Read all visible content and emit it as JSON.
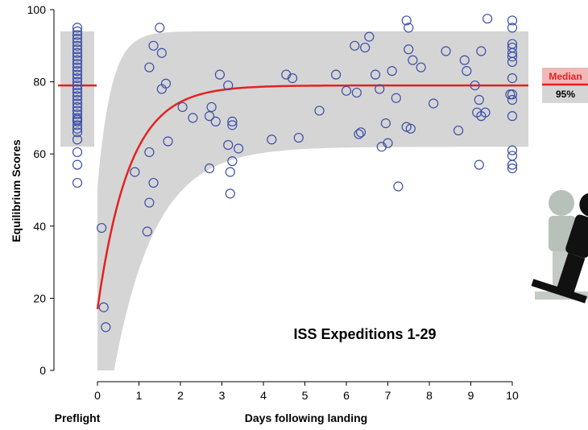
{
  "chart_data": {
    "type": "scatter",
    "title": "",
    "annotation": "ISS Expeditions 1-29",
    "xlabel": "Days following landing",
    "ylabel": "Equilibrium Scores",
    "preflight_label": "Preflight",
    "xlim": [
      0,
      10
    ],
    "ylim": [
      0,
      100
    ],
    "x_ticks": [
      0,
      1,
      2,
      3,
      4,
      5,
      6,
      7,
      8,
      9,
      10
    ],
    "y_ticks": [
      0,
      20,
      40,
      60,
      80,
      100
    ],
    "grid": false,
    "legend": {
      "position": "right",
      "median_label": "Median",
      "band_label": "95%"
    },
    "colors": {
      "points": "#3b4fa8",
      "median": "#e52222",
      "band": "#d5d5d5",
      "legend_median_bg": "#f2b8b8",
      "legend_band_bg": "#d5d5d5"
    },
    "preflight": {
      "median": 79,
      "band": [
        62,
        94
      ],
      "values": [
        95,
        94,
        93,
        92,
        91,
        90,
        89,
        88,
        87,
        86,
        85,
        84,
        83,
        82,
        81,
        80,
        79,
        78,
        77,
        76,
        75,
        74,
        73,
        72,
        71,
        70,
        69.5,
        69,
        68,
        67,
        66,
        64,
        60.5,
        57,
        52
      ]
    },
    "recovery": {
      "median_curve": {
        "start": 17,
        "asymptote": 79,
        "rate": 1.3
      },
      "band_upper": {
        "start": 51,
        "asymptote": 94,
        "rate": 3.0
      },
      "band_lower": {
        "start": 0,
        "flat_until": 0.4,
        "asymptote": 62,
        "rate": 1.0
      }
    },
    "points": [
      [
        0.1,
        39.5
      ],
      [
        0.15,
        17.5
      ],
      [
        0.2,
        12
      ],
      [
        0.9,
        55
      ],
      [
        1.2,
        38.5
      ],
      [
        1.25,
        46.5
      ],
      [
        1.25,
        60.5
      ],
      [
        1.25,
        84
      ],
      [
        1.35,
        90
      ],
      [
        1.35,
        52
      ],
      [
        1.5,
        95
      ],
      [
        1.55,
        88
      ],
      [
        1.55,
        78
      ],
      [
        1.65,
        79.5
      ],
      [
        1.7,
        63.5
      ],
      [
        2.05,
        73
      ],
      [
        2.3,
        70
      ],
      [
        2.7,
        56
      ],
      [
        2.7,
        70.5
      ],
      [
        2.75,
        73
      ],
      [
        2.85,
        69
      ],
      [
        2.95,
        82
      ],
      [
        3.15,
        79
      ],
      [
        3.15,
        62.5
      ],
      [
        3.2,
        55
      ],
      [
        3.2,
        49
      ],
      [
        3.25,
        68
      ],
      [
        3.25,
        69
      ],
      [
        3.25,
        58
      ],
      [
        3.4,
        61.5
      ],
      [
        4.2,
        64
      ],
      [
        4.55,
        82
      ],
      [
        4.7,
        81
      ],
      [
        4.85,
        64.5
      ],
      [
        5.35,
        72
      ],
      [
        5.75,
        82
      ],
      [
        6.0,
        77.5
      ],
      [
        6.2,
        90
      ],
      [
        6.25,
        77
      ],
      [
        6.3,
        65.5
      ],
      [
        6.35,
        66
      ],
      [
        6.45,
        89.5
      ],
      [
        6.55,
        92.5
      ],
      [
        6.7,
        82
      ],
      [
        6.8,
        78
      ],
      [
        6.85,
        62
      ],
      [
        6.95,
        68.5
      ],
      [
        7.0,
        63
      ],
      [
        7.1,
        83
      ],
      [
        7.2,
        75.5
      ],
      [
        7.25,
        51
      ],
      [
        7.45,
        97
      ],
      [
        7.45,
        67.5
      ],
      [
        7.5,
        95
      ],
      [
        7.5,
        89
      ],
      [
        7.55,
        67
      ],
      [
        7.6,
        86
      ],
      [
        7.8,
        84
      ],
      [
        8.1,
        74
      ],
      [
        8.4,
        88.5
      ],
      [
        8.7,
        66.5
      ],
      [
        8.85,
        86
      ],
      [
        8.9,
        83
      ],
      [
        9.1,
        79
      ],
      [
        9.15,
        71.5
      ],
      [
        9.2,
        75
      ],
      [
        9.2,
        57
      ],
      [
        9.25,
        88.5
      ],
      [
        9.25,
        70.5
      ],
      [
        9.35,
        71.5
      ],
      [
        9.4,
        97.5
      ],
      [
        9.95,
        76.5
      ],
      [
        10.0,
        97
      ],
      [
        10.0,
        95
      ],
      [
        10.0,
        90.5
      ],
      [
        10.0,
        89.5
      ],
      [
        10.0,
        88
      ],
      [
        10.0,
        87
      ],
      [
        10.0,
        85.5
      ],
      [
        10.0,
        81
      ],
      [
        10.0,
        76.5
      ],
      [
        10.0,
        75
      ],
      [
        10.0,
        70.5
      ],
      [
        10.0,
        61
      ],
      [
        10.0,
        59.5
      ],
      [
        10.0,
        57
      ],
      [
        10.0,
        56
      ]
    ]
  },
  "figure": {
    "pictogram_name": "balance-test-pictogram"
  }
}
